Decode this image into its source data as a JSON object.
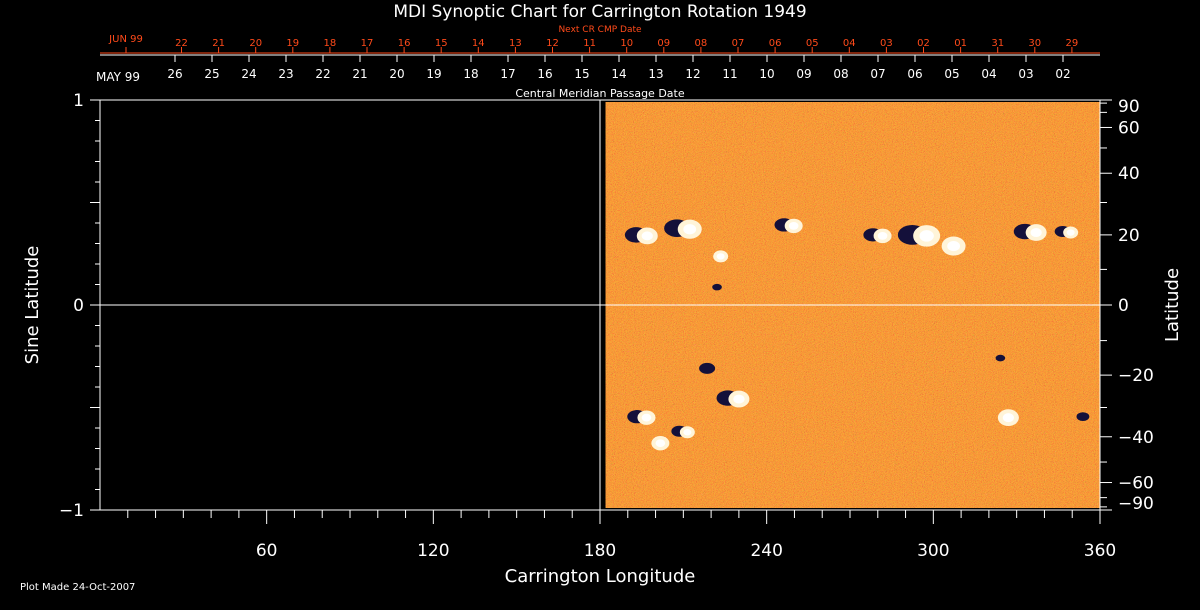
{
  "title": "MDI Synoptic Chart for Carrington Rotation 1949",
  "next_cr_label": "Next CR CMP Date",
  "cmp_label": "Central Meridian Passage Date",
  "top_month_label": "JUN 99",
  "top_dates": [
    "22",
    "21",
    "20",
    "19",
    "18",
    "17",
    "16",
    "15",
    "14",
    "13",
    "12",
    "11",
    "10",
    "09",
    "08",
    "07",
    "06",
    "05",
    "04",
    "03",
    "02",
    "01",
    "31",
    "30",
    "29"
  ],
  "bottom_month_label": "MAY 99",
  "bottom_dates": [
    "26",
    "25",
    "24",
    "23",
    "22",
    "21",
    "20",
    "19",
    "18",
    "17",
    "16",
    "15",
    "14",
    "13",
    "12",
    "11",
    "10",
    "09",
    "08",
    "07",
    "06",
    "05",
    "04",
    "03",
    "02"
  ],
  "footer": "Plot Made 24-Oct-2007",
  "colors": {
    "top_dates": "#ff4a1a",
    "background": "#000000",
    "foreground": "#ffffff"
  },
  "chart_data": {
    "type": "heatmap",
    "title": "MDI Synoptic Chart for Carrington Rotation 1949",
    "xlabel": "Carrington Longitude",
    "ylabel": "Sine Latitude",
    "y2label": "Latitude",
    "xlim": [
      0,
      360
    ],
    "ylim": [
      -1,
      1
    ],
    "x_ticks": [
      60,
      120,
      180,
      240,
      300,
      360
    ],
    "x_tick_labels": [
      "60",
      "120",
      "180",
      "240",
      "300",
      "360"
    ],
    "y_ticks": [
      -1,
      0,
      1
    ],
    "y_tick_labels": [
      "−1",
      "0",
      "1"
    ],
    "y2_ticks": [
      90,
      60,
      40,
      20,
      0,
      -20,
      -40,
      -60,
      -90
    ],
    "y2_tick_labels": [
      "90",
      "60",
      "40",
      "20",
      "0",
      "−20",
      "−40",
      "−60",
      "−90"
    ],
    "data_coverage_x": [
      182,
      360
    ],
    "colormap": "magnetic field (dark blue negative, orange neutral, white positive)",
    "active_regions": [
      {
        "lon": 195,
        "lat": 20,
        "pol": "mixed",
        "size": 14
      },
      {
        "lon": 210,
        "lat": 22,
        "pol": "mixed",
        "size": 16
      },
      {
        "lon": 222,
        "lat": 14,
        "pol": "pos",
        "size": 10
      },
      {
        "lon": 223,
        "lat": 5,
        "pol": "neg",
        "size": 6
      },
      {
        "lon": 248,
        "lat": 23,
        "pol": "mixed",
        "size": 12
      },
      {
        "lon": 280,
        "lat": 20,
        "pol": "mixed",
        "size": 12
      },
      {
        "lon": 295,
        "lat": 20,
        "pol": "mixed",
        "size": 18
      },
      {
        "lon": 305,
        "lat": 17,
        "pol": "pos",
        "size": 16
      },
      {
        "lon": 335,
        "lat": 21,
        "pol": "mixed",
        "size": 14
      },
      {
        "lon": 348,
        "lat": 21,
        "pol": "mixed",
        "size": 10
      },
      {
        "lon": 220,
        "lat": -18,
        "pol": "neg",
        "size": 10
      },
      {
        "lon": 228,
        "lat": -27,
        "pol": "mixed",
        "size": 14
      },
      {
        "lon": 195,
        "lat": -33,
        "pol": "mixed",
        "size": 12
      },
      {
        "lon": 210,
        "lat": -38,
        "pol": "mixed",
        "size": 10
      },
      {
        "lon": 200,
        "lat": -42,
        "pol": "pos",
        "size": 12
      },
      {
        "lon": 325,
        "lat": -15,
        "pol": "neg",
        "size": 6
      },
      {
        "lon": 325,
        "lat": -33,
        "pol": "pos",
        "size": 14
      },
      {
        "lon": 355,
        "lat": -33,
        "pol": "neg",
        "size": 8
      }
    ]
  }
}
